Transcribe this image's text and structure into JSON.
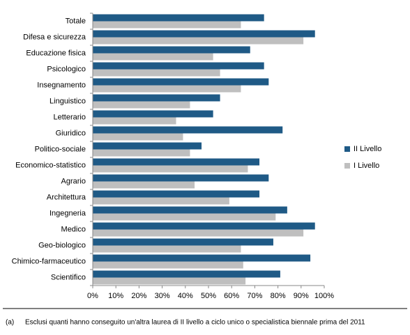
{
  "chart_data": {
    "type": "bar",
    "orientation": "horizontal",
    "categories": [
      "Totale",
      "Difesa e sicurezza",
      "Educazione fisica",
      "Psicologico",
      "Insegnamento",
      "Linguistico",
      "Letterario",
      "Giuridico",
      "Politico-sociale",
      "Economico-statistico",
      "Agrario",
      "Architettura",
      "Ingegneria",
      "Medico",
      "Geo-biologico",
      "Chimico-farmaceutico",
      "Scientifico"
    ],
    "series": [
      {
        "name": "II Livello",
        "color": "#1f5a86",
        "values": [
          74,
          96,
          68,
          74,
          76,
          55,
          52,
          82,
          47,
          72,
          76,
          72,
          84,
          96,
          78,
          94,
          81
        ]
      },
      {
        "name": "I Livello",
        "color": "#bfbfbf",
        "values": [
          64,
          91,
          52,
          55,
          64,
          42,
          36,
          39,
          42,
          67,
          44,
          59,
          79,
          91,
          64,
          65,
          66
        ]
      }
    ],
    "xlim": [
      0,
      100
    ],
    "xticks": [
      {
        "value": 0,
        "label": "0%"
      },
      {
        "value": 10,
        "label": "10%"
      },
      {
        "value": 20,
        "label": "20%"
      },
      {
        "value": 30,
        "label": "30%"
      },
      {
        "value": 40,
        "label": "40%"
      },
      {
        "value": 50,
        "label": "50%"
      },
      {
        "value": 60,
        "label": "60%"
      },
      {
        "value": 70,
        "label": "70%"
      },
      {
        "value": 80,
        "label": "80%"
      },
      {
        "value": 90,
        "label": "90%"
      },
      {
        "value": 100,
        "label": "100%"
      }
    ],
    "legend": "right",
    "footnote": {
      "marker": "(a)",
      "text": "Esclusi quanti hanno conseguito un'altra laurea di II livello a ciclo unico o specialistica biennale prima del 2011"
    }
  }
}
